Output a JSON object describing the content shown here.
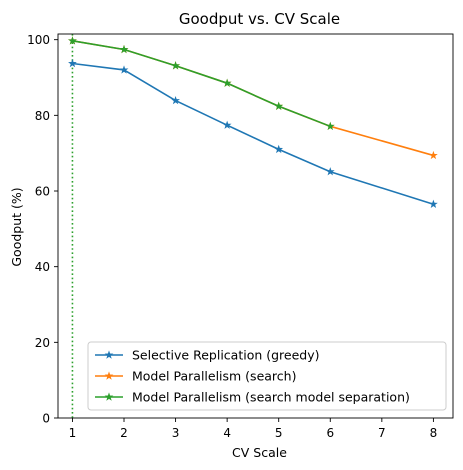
{
  "chart_data": {
    "type": "line",
    "title": "Goodput vs. CV Scale",
    "xlabel": "CV Scale",
    "ylabel": "Goodput (%)",
    "xlim": [
      0.72,
      8.38
    ],
    "ylim": [
      0,
      101.5
    ],
    "xticks": [
      1,
      2,
      3,
      4,
      5,
      6,
      7,
      8
    ],
    "yticks": [
      0,
      20,
      40,
      60,
      80,
      100
    ],
    "grid": false,
    "legend_position": "bottom-right",
    "vline": {
      "x": 1,
      "style": "dotted",
      "color": "#2ca02c"
    },
    "series": [
      {
        "name": "Selective Replication (greedy)",
        "color": "#1f77b4",
        "marker": "star",
        "x": [
          1,
          2,
          3,
          4,
          5,
          6,
          8
        ],
        "y": [
          93.7,
          92.0,
          83.9,
          77.4,
          71.0,
          65.1,
          56.5
        ]
      },
      {
        "name": "Model Parallelism (search)",
        "color": "#ff7f0e",
        "marker": "star",
        "x": [
          1,
          2,
          3,
          4,
          5,
          6,
          8
        ],
        "y": [
          99.7,
          97.4,
          93.1,
          88.5,
          82.4,
          77.1,
          69.4
        ]
      },
      {
        "name": "Model Parallelism (search model separation)",
        "color": "#2ca02c",
        "marker": "star",
        "x": [
          1,
          2,
          3,
          4,
          5,
          6
        ],
        "y": [
          99.7,
          97.4,
          93.1,
          88.5,
          82.4,
          77.1
        ]
      }
    ]
  }
}
